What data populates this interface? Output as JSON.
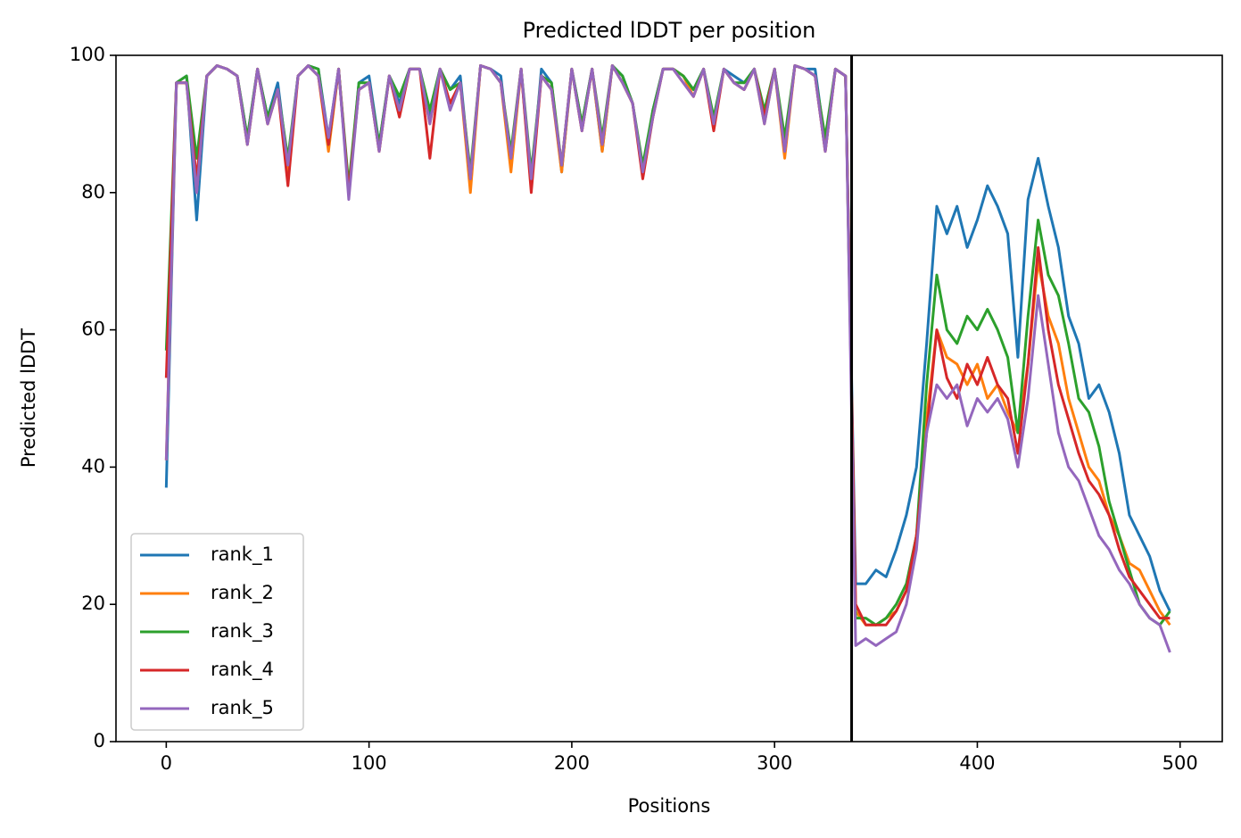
{
  "chart_data": {
    "type": "line",
    "title": "Predicted lDDT per position",
    "xlabel": "Positions",
    "ylabel": "Predicted lDDT",
    "x": [
      0,
      5,
      10,
      15,
      20,
      25,
      30,
      35,
      40,
      45,
      50,
      55,
      60,
      65,
      70,
      75,
      80,
      85,
      90,
      95,
      100,
      105,
      110,
      115,
      120,
      125,
      130,
      135,
      140,
      145,
      150,
      155,
      160,
      165,
      170,
      175,
      180,
      185,
      190,
      195,
      200,
      205,
      210,
      215,
      220,
      225,
      230,
      235,
      240,
      245,
      250,
      255,
      260,
      265,
      270,
      275,
      280,
      285,
      290,
      295,
      300,
      305,
      310,
      315,
      320,
      325,
      330,
      335,
      340,
      345,
      350,
      355,
      360,
      365,
      370,
      375,
      380,
      385,
      390,
      395,
      400,
      405,
      410,
      415,
      420,
      425,
      430,
      435,
      440,
      445,
      450,
      455,
      460,
      465,
      470,
      475,
      480,
      485,
      490,
      495
    ],
    "series": [
      {
        "name": "rank_1",
        "color": "#1f77b4",
        "values": [
          37,
          96,
          97,
          76,
          97,
          98.5,
          98,
          97,
          88,
          98,
          91,
          96,
          84,
          97,
          98.5,
          98,
          88,
          98,
          80,
          96,
          97,
          87,
          97,
          93,
          98,
          98,
          91,
          98,
          95,
          97,
          82,
          98.5,
          98,
          97,
          84,
          98,
          81,
          98,
          96,
          83,
          98,
          90,
          98,
          86,
          98.5,
          97,
          93,
          83,
          92,
          98,
          98,
          97,
          95,
          98,
          90,
          98,
          97,
          96,
          98,
          91,
          98,
          87,
          98.5,
          98,
          98,
          87,
          98,
          97,
          23,
          23,
          25,
          24,
          28,
          33,
          40,
          58,
          78,
          74,
          78,
          72,
          76,
          81,
          78,
          74,
          56,
          79,
          85,
          78,
          72,
          62,
          58,
          50,
          52,
          48,
          42,
          33,
          30,
          27,
          22,
          19
        ]
      },
      {
        "name": "rank_2",
        "color": "#ff7f0e",
        "values": [
          41,
          96,
          96,
          80,
          97,
          98.5,
          98,
          97,
          87,
          98,
          90,
          95,
          83,
          97,
          98.5,
          97,
          86,
          98,
          80,
          95,
          96,
          86,
          97,
          92,
          98,
          98,
          90,
          98,
          93,
          96,
          80,
          98.5,
          98,
          96,
          83,
          98,
          81,
          97,
          95,
          83,
          98,
          89,
          98,
          86,
          98.5,
          96,
          93,
          83,
          91,
          98,
          98,
          97,
          94,
          98,
          90,
          98,
          96,
          95,
          98,
          90,
          98,
          85,
          98.5,
          98,
          97,
          86,
          98,
          97,
          19,
          17,
          17,
          18,
          19,
          22,
          30,
          47,
          60,
          56,
          55,
          52,
          55,
          50,
          52,
          48,
          45,
          55,
          70,
          62,
          58,
          50,
          45,
          40,
          38,
          33,
          30,
          26,
          25,
          22,
          19,
          17
        ]
      },
      {
        "name": "rank_3",
        "color": "#2ca02c",
        "values": [
          57,
          96,
          97,
          85,
          97,
          98.5,
          98,
          97,
          88,
          98,
          91,
          95,
          85,
          97,
          98.5,
          98,
          87,
          98,
          81,
          96,
          96,
          87,
          97,
          94,
          98,
          98,
          92,
          98,
          95,
          96,
          83,
          98.5,
          98,
          96,
          86,
          98,
          83,
          97,
          96,
          84,
          98,
          90,
          98,
          88,
          98.5,
          97,
          93,
          84,
          92,
          98,
          98,
          97,
          95,
          98,
          91,
          98,
          96,
          96,
          98,
          92,
          98,
          88,
          98.5,
          98,
          97,
          88,
          98,
          97,
          18,
          18,
          17,
          18,
          20,
          23,
          30,
          52,
          68,
          60,
          58,
          62,
          60,
          63,
          60,
          56,
          45,
          62,
          76,
          68,
          65,
          58,
          50,
          48,
          43,
          35,
          30,
          25,
          20,
          18,
          17,
          19
        ]
      },
      {
        "name": "rank_4",
        "color": "#d62728",
        "values": [
          53,
          96,
          96,
          82,
          97,
          98.5,
          98,
          97,
          87,
          98,
          90,
          95,
          81,
          97,
          98.5,
          97,
          87,
          98,
          80,
          95,
          96,
          86,
          97,
          91,
          98,
          98,
          85,
          98,
          93,
          96,
          82,
          98.5,
          98,
          96,
          85,
          98,
          80,
          97,
          95,
          84,
          98,
          89,
          98,
          87,
          98.5,
          96,
          93,
          82,
          91,
          98,
          98,
          96,
          94,
          98,
          89,
          98,
          96,
          95,
          98,
          91,
          98,
          86,
          98.5,
          98,
          97,
          86,
          98,
          97,
          20,
          17,
          17,
          17,
          19,
          22,
          30,
          45,
          60,
          53,
          50,
          55,
          52,
          56,
          52,
          50,
          42,
          55,
          72,
          60,
          52,
          47,
          42,
          38,
          36,
          33,
          28,
          24,
          22,
          20,
          18,
          18
        ]
      },
      {
        "name": "rank_5",
        "color": "#9467bd",
        "values": [
          41,
          96,
          96,
          80,
          97,
          98.5,
          98,
          97,
          87,
          98,
          90,
          95,
          84,
          97,
          98.5,
          97,
          88,
          98,
          79,
          95,
          96,
          86,
          97,
          92,
          98,
          98,
          90,
          98,
          92,
          96,
          82,
          98.5,
          98,
          96,
          85,
          98,
          82,
          97,
          95,
          84,
          98,
          89,
          98,
          87,
          98.5,
          96,
          93,
          83,
          91,
          98,
          98,
          96,
          94,
          98,
          90,
          98,
          96,
          95,
          98,
          90,
          98,
          86,
          98.5,
          98,
          97,
          86,
          98,
          97,
          14,
          15,
          14,
          15,
          16,
          20,
          28,
          45,
          52,
          50,
          52,
          46,
          50,
          48,
          50,
          47,
          40,
          50,
          65,
          55,
          45,
          40,
          38,
          34,
          30,
          28,
          25,
          23,
          20,
          18,
          17,
          13
        ]
      }
    ],
    "vline": {
      "x": 338,
      "color": "#000000"
    },
    "xlim": [
      -24.8,
      520.8
    ],
    "ylim": [
      0,
      100
    ],
    "xticks": [
      0,
      100,
      200,
      300,
      400,
      500
    ],
    "yticks": [
      0,
      20,
      40,
      60,
      80,
      100
    ],
    "grid": false,
    "legend": "lower left"
  }
}
